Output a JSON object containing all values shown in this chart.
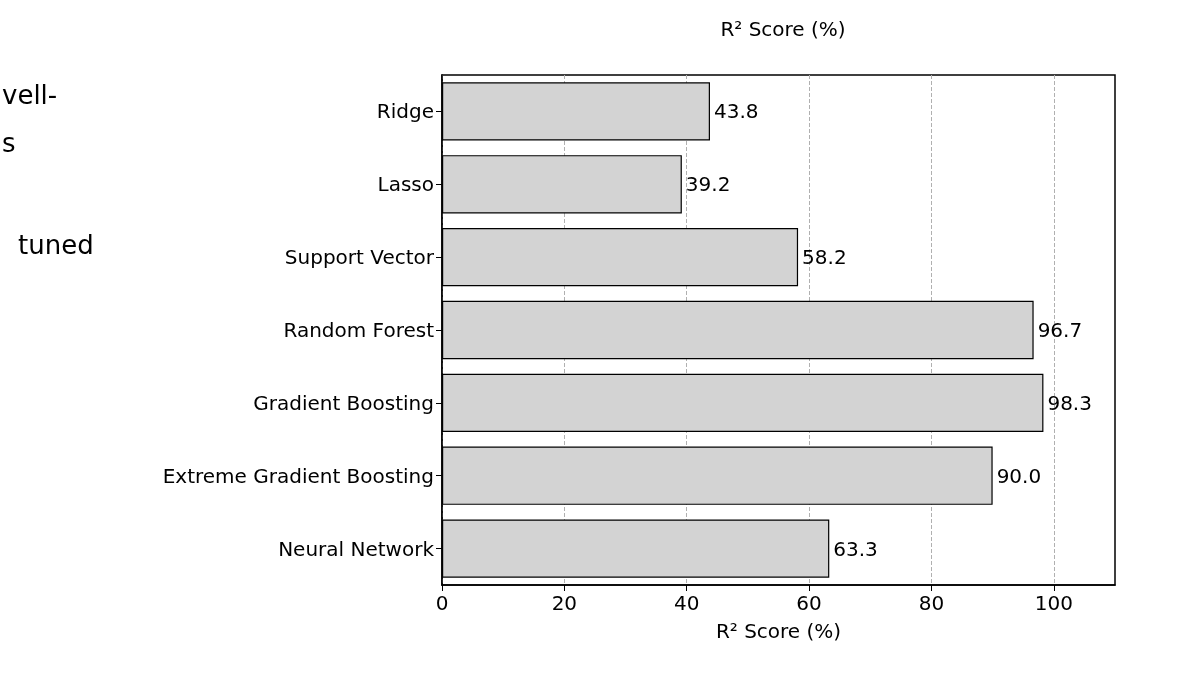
{
  "chart_data": {
    "type": "bar",
    "orientation": "horizontal",
    "title": "R² Score (%)",
    "xlabel": "R² Score (%)",
    "categories": [
      "Ridge",
      "Lasso",
      "Support Vector",
      "Random Forest",
      "Gradient Boosting",
      "Extreme Gradient Boosting",
      "Neural Network"
    ],
    "values": [
      43.8,
      39.2,
      58.2,
      96.7,
      98.3,
      90.0,
      63.3
    ],
    "value_labels": [
      "43.8",
      "39.2",
      "58.2",
      "96.7",
      "98.3",
      "90.0",
      "63.3"
    ],
    "color": "#d3d3d3",
    "xlim": [
      0,
      110
    ],
    "xticks": [
      0,
      20,
      40,
      60,
      80,
      100
    ],
    "grid": "x",
    "annotations": [
      "vell-",
      "s",
      "tuned"
    ]
  }
}
